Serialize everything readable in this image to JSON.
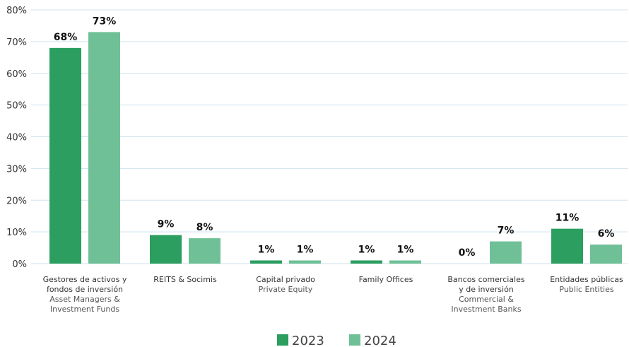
{
  "chart_data": {
    "type": "bar",
    "categories": [
      {
        "es": [
          "Gestores de activos y",
          "fondos de inversión"
        ],
        "en": [
          "Asset Managers &",
          "Investment Funds"
        ]
      },
      {
        "es": [
          "REITS & Socimis"
        ],
        "en": []
      },
      {
        "es": [
          "Capital privado"
        ],
        "en": [
          "Private Equity"
        ]
      },
      {
        "es": [
          "Family Offices"
        ],
        "en": []
      },
      {
        "es": [
          "Bancos comerciales",
          "y de inversión"
        ],
        "en": [
          "Commercial &",
          "Investment Banks"
        ]
      },
      {
        "es": [
          "Entidades públicas"
        ],
        "en": [
          "Public Entities"
        ]
      }
    ],
    "series": [
      {
        "name": "2023",
        "color": "#2b9e60",
        "values": [
          68,
          9,
          1,
          1,
          0,
          11
        ],
        "labels": [
          "68%",
          "9%",
          "1%",
          "1%",
          "0%",
          "11%"
        ]
      },
      {
        "name": "2024",
        "color": "#6fc096",
        "values": [
          73,
          8,
          1,
          1,
          7,
          6
        ],
        "labels": [
          "73%",
          "8%",
          "1%",
          "1%",
          "7%",
          "6%"
        ]
      }
    ],
    "ylim": [
      0,
      80
    ],
    "yticks": [
      0,
      10,
      20,
      30,
      40,
      50,
      60,
      70,
      80
    ],
    "ytick_labels": [
      "0%",
      "10%",
      "20%",
      "30%",
      "40%",
      "50%",
      "60%",
      "70%",
      "80%"
    ],
    "grid": true,
    "grid_color": "#cfe3ee",
    "legend_position": "bottom-center"
  }
}
